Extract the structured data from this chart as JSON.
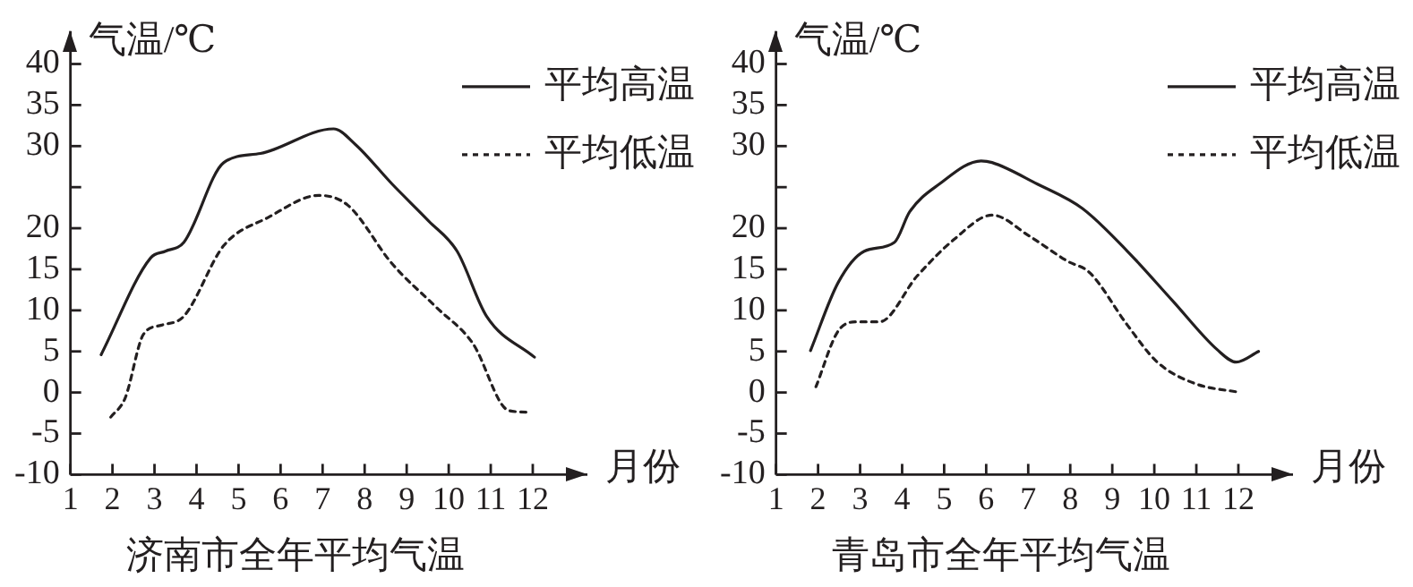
{
  "chart_data": [
    {
      "type": "line",
      "title": "济南市全年平均气温",
      "xlabel": "月份",
      "ylabel": "气温/℃",
      "legend": "top right",
      "marker": "none",
      "xlim": [
        1,
        13.3
      ],
      "xticks": [
        1,
        2,
        3,
        4,
        5,
        6,
        7,
        8,
        9,
        10,
        11,
        12
      ],
      "ylim": [
        -10,
        44
      ],
      "yticks": [
        -10,
        -5,
        0,
        5,
        10,
        15,
        20,
        {
          "value": 25,
          "label": null
        },
        30,
        35,
        40
      ],
      "series": [
        {
          "name": "平均高温",
          "color": "#231f20",
          "line_style": "solid",
          "x": [
            1.73,
            2.91,
            3.26,
            3.7,
            4.65,
            5.52,
            7.26,
            7.78,
            8.65,
            9.52,
            10.2,
            10.9,
            12.04
          ],
          "values": [
            4.6,
            16.4,
            17.2,
            18.3,
            28,
            29.1,
            32.1,
            30.2,
            25.4,
            20.9,
            17.2,
            9.3,
            4.3
          ]
        },
        {
          "name": "平均低温",
          "color": "#231f20",
          "line_style": "dotted",
          "x": [
            1.96,
            2.3,
            2.74,
            3.17,
            3.7,
            4.65,
            5.7,
            6.91,
            7.6,
            8.65,
            9.7,
            10.57,
            11.43,
            11.96
          ],
          "values": [
            -3,
            -0.7,
            7.1,
            8.2,
            9.3,
            17.9,
            21.3,
            24,
            22.8,
            15.7,
            10.4,
            6,
            -2.2,
            -2.4
          ]
        }
      ]
    },
    {
      "type": "line",
      "title": "青岛市全年平均气温",
      "xlabel": "月份",
      "ylabel": "气温/℃",
      "legend": "top right",
      "marker": "none",
      "xlim": [
        1,
        13.3
      ],
      "xticks": [
        1,
        2,
        3,
        4,
        5,
        6,
        7,
        8,
        9,
        10,
        11,
        12
      ],
      "ylim": [
        -10,
        44
      ],
      "yticks": [
        -10,
        -5,
        0,
        5,
        10,
        15,
        20,
        {
          "value": 25,
          "label": null
        },
        30,
        35,
        40
      ],
      "series": [
        {
          "name": "平均高温",
          "color": "#231f20",
          "line_style": "solid",
          "x": [
            1.82,
            2.48,
            3.1,
            3.82,
            4.18,
            4.89,
            5.88,
            6.14,
            7.21,
            8.29,
            9.36,
            10.43,
            11.5,
            11.95,
            12.48
          ],
          "values": [
            5.1,
            13.4,
            17.2,
            18.3,
            22,
            25.4,
            28.2,
            28,
            25.4,
            22.4,
            17.2,
            11.2,
            5.2,
            3.7,
            5
          ]
        },
        {
          "name": "平均低温",
          "color": "#231f20",
          "line_style": "dotted",
          "x": [
            1.95,
            2.48,
            2.93,
            3.46,
            4.36,
            5.25,
            6.14,
            7.04,
            7.93,
            8.46,
            9.36,
            10.07,
            10.96,
            12.04
          ],
          "values": [
            0.7,
            7.5,
            8.6,
            8.6,
            14.2,
            18.7,
            21.6,
            19,
            16,
            14.6,
            8.2,
            3.7,
            1.1,
            0
          ]
        }
      ]
    }
  ]
}
